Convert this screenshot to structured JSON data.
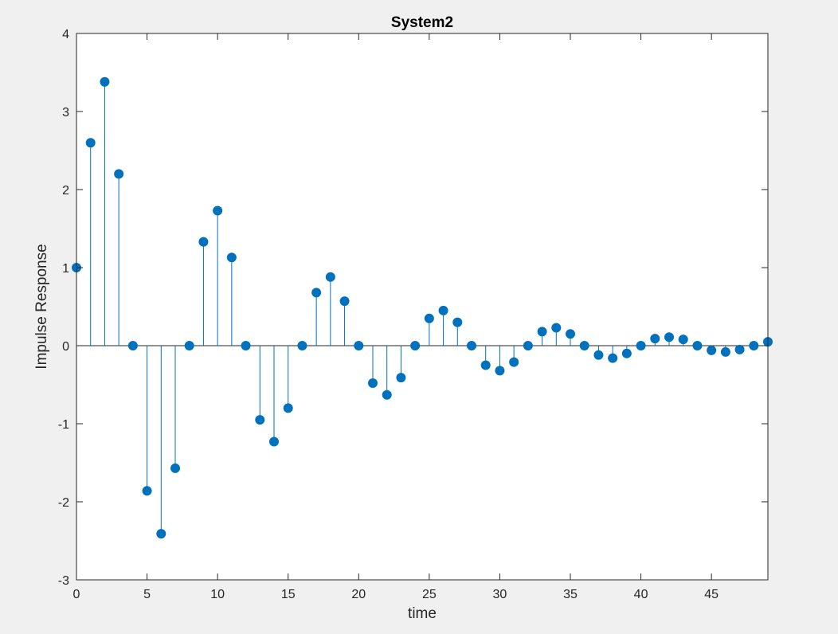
{
  "chart_data": {
    "type": "stem",
    "title": "System2",
    "xlabel": "time",
    "ylabel": "Impulse Response",
    "xlim": [
      0,
      49
    ],
    "ylim": [
      -3,
      4
    ],
    "xticks": [
      0,
      5,
      10,
      15,
      20,
      25,
      30,
      35,
      40,
      45
    ],
    "yticks": [
      -3,
      -2,
      -1,
      0,
      1,
      2,
      3,
      4
    ],
    "grid": false,
    "series": [
      {
        "color": "#0072bd",
        "x": [
          0,
          1,
          2,
          3,
          4,
          5,
          6,
          7,
          8,
          9,
          10,
          11,
          12,
          13,
          14,
          15,
          16,
          17,
          18,
          19,
          20,
          21,
          22,
          23,
          24,
          25,
          26,
          27,
          28,
          29,
          30,
          31,
          32,
          33,
          34,
          35,
          36,
          37,
          38,
          39,
          40,
          41,
          42,
          43,
          44,
          45,
          46,
          47,
          48,
          49
        ],
        "values": [
          1.0,
          2.6,
          3.38,
          2.2,
          0,
          -1.86,
          -2.41,
          -1.57,
          0,
          1.33,
          1.73,
          1.13,
          0,
          -0.95,
          -1.23,
          -0.8,
          0,
          0.68,
          0.88,
          0.57,
          0,
          -0.48,
          -0.63,
          -0.41,
          0,
          0.35,
          0.45,
          0.3,
          0,
          -0.25,
          -0.32,
          -0.21,
          0,
          0.18,
          0.23,
          0.15,
          0,
          -0.12,
          -0.16,
          -0.1,
          0,
          0.09,
          0.11,
          0.08,
          0,
          -0.06,
          -0.08,
          -0.05,
          0,
          0.05
        ]
      }
    ]
  }
}
